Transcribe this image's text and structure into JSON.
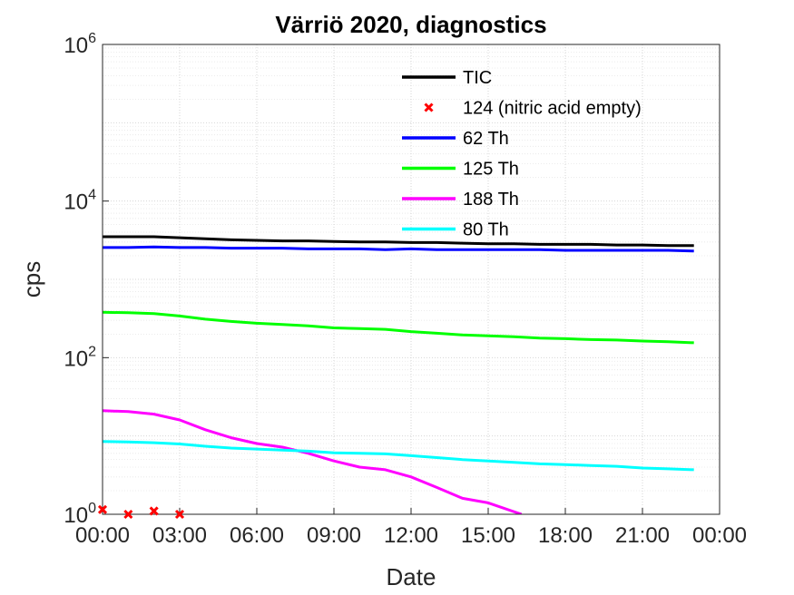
{
  "chart_data": {
    "type": "line",
    "title": "Värriö 2020, diagnostics",
    "xlabel": "Date",
    "ylabel": "cps",
    "yscale": "log",
    "ylim": [
      1,
      1000000
    ],
    "xlim": [
      0,
      24
    ],
    "grid": true,
    "legend_position": "top-right",
    "x_tick_labels": [
      "00:00",
      "03:00",
      "06:00",
      "09:00",
      "12:00",
      "15:00",
      "18:00",
      "21:00",
      "00:00"
    ],
    "y_ticks": [
      {
        "base": "10",
        "exp": "0"
      },
      {
        "base": "10",
        "exp": "2"
      },
      {
        "base": "10",
        "exp": "4"
      },
      {
        "base": "10",
        "exp": "6"
      }
    ],
    "series": [
      {
        "name": "TIC",
        "color": "#000000",
        "style": "line",
        "points": [
          [
            0,
            3500
          ],
          [
            1,
            3500
          ],
          [
            2,
            3500
          ],
          [
            3,
            3400
          ],
          [
            4,
            3300
          ],
          [
            5,
            3200
          ],
          [
            6,
            3150
          ],
          [
            7,
            3100
          ],
          [
            8,
            3100
          ],
          [
            9,
            3050
          ],
          [
            10,
            3000
          ],
          [
            11,
            3000
          ],
          [
            12,
            2950
          ],
          [
            13,
            2950
          ],
          [
            14,
            2900
          ],
          [
            15,
            2850
          ],
          [
            16,
            2850
          ],
          [
            17,
            2800
          ],
          [
            18,
            2800
          ],
          [
            19,
            2800
          ],
          [
            20,
            2750
          ],
          [
            21,
            2750
          ],
          [
            22,
            2700
          ],
          [
            23,
            2700
          ]
        ]
      },
      {
        "name": "124 (nitric acid empty)",
        "color": "#ff0000",
        "style": "marker",
        "points": [
          [
            0,
            1.15
          ],
          [
            1,
            1.0
          ],
          [
            2,
            1.1
          ],
          [
            3,
            1.0
          ]
        ]
      },
      {
        "name": "62 Th",
        "color": "#0000ff",
        "style": "line",
        "points": [
          [
            0,
            2550
          ],
          [
            1,
            2550
          ],
          [
            2,
            2600
          ],
          [
            3,
            2550
          ],
          [
            4,
            2550
          ],
          [
            5,
            2500
          ],
          [
            6,
            2500
          ],
          [
            7,
            2500
          ],
          [
            8,
            2450
          ],
          [
            9,
            2450
          ],
          [
            10,
            2450
          ],
          [
            11,
            2400
          ],
          [
            12,
            2450
          ],
          [
            13,
            2400
          ],
          [
            14,
            2400
          ],
          [
            15,
            2400
          ],
          [
            16,
            2400
          ],
          [
            17,
            2400
          ],
          [
            18,
            2350
          ],
          [
            19,
            2350
          ],
          [
            20,
            2350
          ],
          [
            21,
            2350
          ],
          [
            22,
            2350
          ],
          [
            23,
            2300
          ]
        ]
      },
      {
        "name": "125 Th",
        "color": "#00ff00",
        "style": "line",
        "points": [
          [
            0,
            380
          ],
          [
            1,
            375
          ],
          [
            2,
            365
          ],
          [
            3,
            340
          ],
          [
            4,
            310
          ],
          [
            5,
            290
          ],
          [
            6,
            275
          ],
          [
            7,
            265
          ],
          [
            8,
            255
          ],
          [
            9,
            240
          ],
          [
            10,
            235
          ],
          [
            11,
            230
          ],
          [
            12,
            215
          ],
          [
            13,
            205
          ],
          [
            14,
            195
          ],
          [
            15,
            190
          ],
          [
            16,
            185
          ],
          [
            17,
            178
          ],
          [
            18,
            175
          ],
          [
            19,
            170
          ],
          [
            20,
            168
          ],
          [
            21,
            163
          ],
          [
            22,
            160
          ],
          [
            23,
            155
          ]
        ]
      },
      {
        "name": "188 Th",
        "color": "#ff00ff",
        "style": "line",
        "points": [
          [
            0,
            21
          ],
          [
            1,
            20.5
          ],
          [
            2,
            19
          ],
          [
            3,
            16
          ],
          [
            4,
            12
          ],
          [
            5,
            9.5
          ],
          [
            6,
            8
          ],
          [
            7,
            7.2
          ],
          [
            8,
            6
          ],
          [
            9,
            4.8
          ],
          [
            10,
            4
          ],
          [
            11,
            3.7
          ],
          [
            12,
            3
          ],
          [
            13,
            2.2
          ],
          [
            14,
            1.6
          ],
          [
            15,
            1.4
          ],
          [
            16.3,
            1.0
          ]
        ]
      },
      {
        "name": "80 Th",
        "color": "#00ffff",
        "style": "line",
        "points": [
          [
            0,
            8.5
          ],
          [
            1,
            8.4
          ],
          [
            2,
            8.2
          ],
          [
            3,
            7.9
          ],
          [
            4,
            7.4
          ],
          [
            5,
            7
          ],
          [
            6,
            6.8
          ],
          [
            7,
            6.6
          ],
          [
            8,
            6.4
          ],
          [
            9,
            6.1
          ],
          [
            10,
            6
          ],
          [
            11,
            5.9
          ],
          [
            12,
            5.6
          ],
          [
            13,
            5.3
          ],
          [
            14,
            5
          ],
          [
            15,
            4.8
          ],
          [
            16,
            4.6
          ],
          [
            17,
            4.4
          ],
          [
            18,
            4.3
          ],
          [
            19,
            4.2
          ],
          [
            20,
            4.1
          ],
          [
            21,
            3.9
          ],
          [
            22,
            3.8
          ],
          [
            23,
            3.7
          ]
        ]
      }
    ]
  }
}
